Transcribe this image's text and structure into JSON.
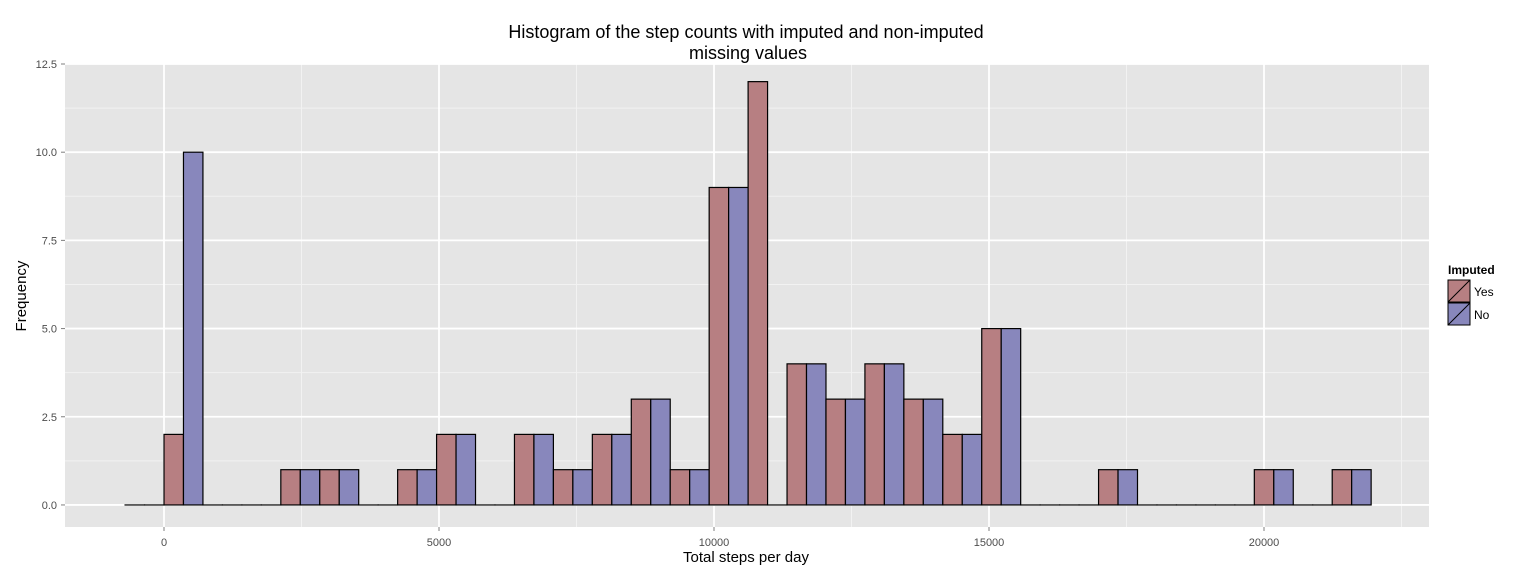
{
  "chart_data": {
    "type": "bar",
    "title_line1": "Histogram of the step counts with imputed and non-imputed",
    "title_line2": "missing values",
    "xlabel": "Total steps per day",
    "ylabel": "Frequency",
    "xlim": [
      -1800,
      23000
    ],
    "ylim": [
      -0.625,
      12.5
    ],
    "x_ticks": [
      0,
      5000,
      10000,
      15000,
      20000
    ],
    "x_tick_labels": [
      "0",
      "5000",
      "10000",
      "15000",
      "20000"
    ],
    "y_ticks": [
      0,
      2.5,
      5,
      7.5,
      10,
      12.5
    ],
    "y_tick_labels": [
      "0.0",
      "2.5",
      "5.0",
      "7.5",
      "10.0",
      "12.5"
    ],
    "bin_width": 708,
    "bin_starts": [
      -708,
      0,
      708,
      1416,
      2124,
      2832,
      3540,
      4248,
      4956,
      5664,
      6372,
      7080,
      7788,
      8496,
      9204,
      9912,
      10620,
      11328,
      12036,
      12744,
      13452,
      14160,
      14868,
      15576,
      16284,
      16992,
      17700,
      18408,
      19116,
      19824,
      20532,
      21240
    ],
    "grid": true,
    "legend": {
      "title": "Imputed",
      "position": "right"
    },
    "series": [
      {
        "name": "Yes",
        "color": "#b77f82",
        "values": [
          0,
          2,
          0,
          0,
          1,
          1,
          0,
          1,
          2,
          0,
          2,
          1,
          2,
          3,
          1,
          9,
          12,
          4,
          3,
          4,
          3,
          2,
          5,
          0,
          0,
          1,
          0,
          0,
          0,
          1,
          0,
          1
        ]
      },
      {
        "name": "No",
        "color": "#8887bc",
        "values": [
          0,
          10,
          0,
          0,
          1,
          1,
          0,
          1,
          2,
          0,
          2,
          1,
          2,
          3,
          1,
          9,
          0,
          4,
          3,
          4,
          3,
          2,
          5,
          0,
          0,
          1,
          0,
          0,
          0,
          1,
          0,
          1
        ]
      }
    ],
    "colors": {
      "panel": "#e5e5e5",
      "grid_major": "#ffffff",
      "grid_minor": "#f2f2f2",
      "outline": "#000000"
    }
  }
}
